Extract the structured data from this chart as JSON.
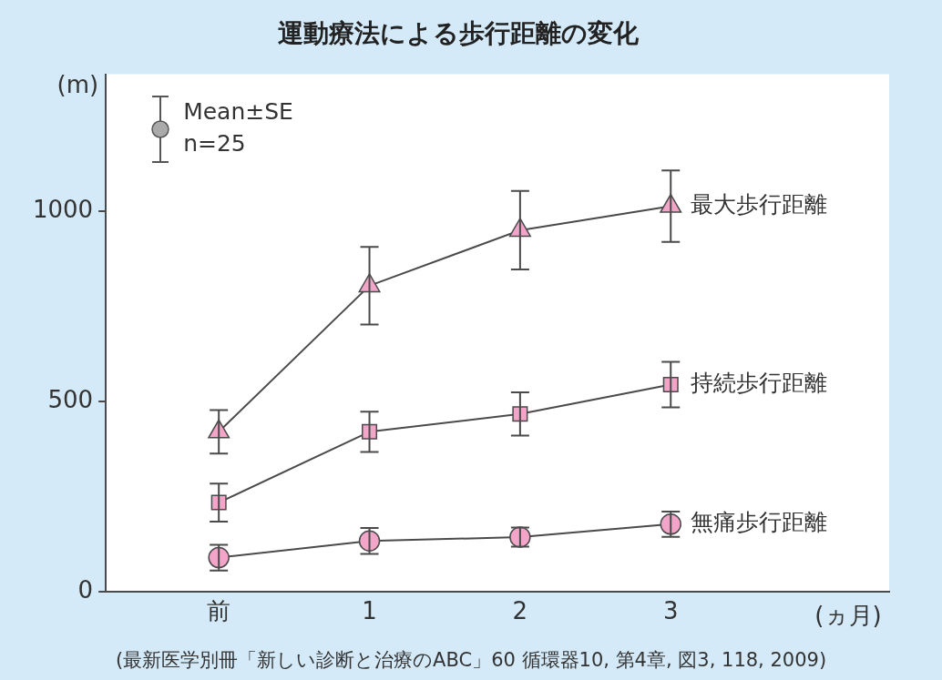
{
  "chart_data": {
    "type": "line",
    "title": "運動療法による歩行距離の変化",
    "xlabel": "(ヵ月)",
    "ylabel": "(m)",
    "categories": [
      "前",
      "1",
      "2",
      "3"
    ],
    "ylim": [
      0,
      1360
    ],
    "yticks": [
      0,
      500,
      1000
    ],
    "grid": false,
    "legend": false,
    "line_style": "solid",
    "series": [
      {
        "name": "最大歩行距離",
        "color": "#f2a5c8",
        "marker": "triangle",
        "values": [
          420,
          804,
          950,
          1013
        ],
        "errors": [
          57,
          102,
          103,
          94
        ]
      },
      {
        "name": "持続歩行距離",
        "color": "#f2a5c8",
        "marker": "square",
        "values": [
          234,
          420,
          467,
          544
        ],
        "errors": [
          50,
          53,
          57,
          60
        ]
      },
      {
        "name": "無痛歩行距離",
        "color": "#f2a5c8",
        "marker": "circle",
        "values": [
          89,
          133,
          143,
          177
        ],
        "errors": [
          34,
          34,
          25,
          33
        ]
      }
    ],
    "annotations": [
      "Mean±SE",
      "n=25",
      "(最新医学別冊「新しい診断と治療のABC」60 循環器10, 第4章, 図3, 118, 2009)"
    ]
  }
}
